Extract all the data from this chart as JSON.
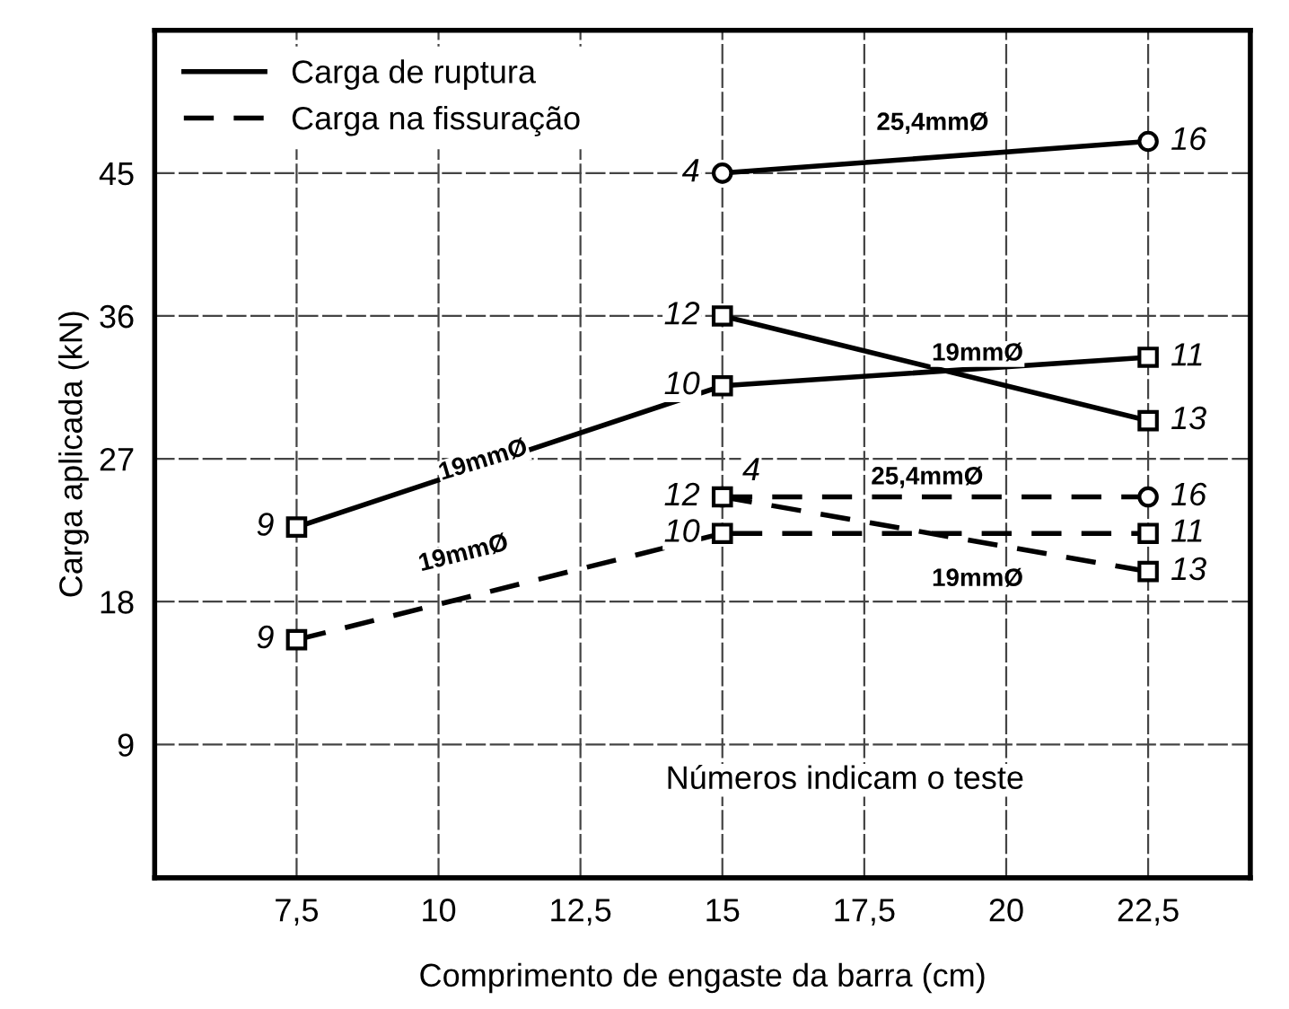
{
  "chart_data": {
    "type": "line",
    "xlabel": "Comprimento de engaste da barra (cm)",
    "ylabel": "Carga aplicada (kN)",
    "xlim": [
      5,
      24.3
    ],
    "ylim": [
      0.6,
      54
    ],
    "xticks": [
      {
        "value": 7.5,
        "label": "7,5"
      },
      10,
      {
        "value": 12.5,
        "label": "12,5"
      },
      15,
      {
        "value": 17.5,
        "label": "17,5"
      },
      20,
      {
        "value": 22.5,
        "label": "22,5"
      }
    ],
    "yticks": [
      9,
      18,
      27,
      36,
      45
    ],
    "grid": true,
    "legend": "top left",
    "series": [
      {
        "name": "Carga de ruptura",
        "color": "#000000",
        "line_style": "solid",
        "marker": "circle",
        "x": [
          15,
          22.5
        ],
        "values": [
          45,
          47
        ]
      },
      {
        "color": "#000000",
        "line_style": "solid",
        "marker": "square",
        "x": [
          15,
          22.5
        ],
        "values": [
          36,
          29.4
        ]
      },
      {
        "color": "#000000",
        "line_style": "solid",
        "marker": "square",
        "x": [
          7.5,
          15,
          22.5
        ],
        "values": [
          22.7,
          31.6,
          33.4
        ]
      },
      {
        "name": "Carga na fissuração",
        "color": "#000000",
        "line_style": "dashed",
        "marker": "circle",
        "x": [
          15,
          22.5
        ],
        "values": [
          24.6,
          24.6
        ]
      },
      {
        "color": "#000000",
        "line_style": "dashed",
        "marker": "square",
        "x": [
          15,
          22.5
        ],
        "values": [
          24.6,
          19.9
        ]
      },
      {
        "color": "#000000",
        "line_style": "dashed",
        "marker": "square",
        "x": [
          7.5,
          15,
          22.5
        ],
        "values": [
          15.6,
          22.3,
          22.3
        ]
      }
    ],
    "annotations": [
      {
        "text": "4",
        "x": 15,
        "y": 45
      },
      {
        "text": "16",
        "x": 22.5,
        "y": 47
      },
      {
        "text": "12",
        "x": 15,
        "y": 36
      },
      {
        "text": "13",
        "x": 22.5,
        "y": 29.4
      },
      {
        "text": "9",
        "x": 7.5,
        "y": 22.7
      },
      {
        "text": "10",
        "x": 15,
        "y": 31.6
      },
      {
        "text": "11",
        "x": 22.5,
        "y": 33.4
      },
      {
        "text": "12",
        "x": 15,
        "y": 24.6
      },
      {
        "text": "4",
        "x": 15,
        "y": 24.6
      },
      {
        "text": "16",
        "x": 22.5,
        "y": 24.6
      },
      {
        "text": "13",
        "x": 22.5,
        "y": 19.9
      },
      {
        "text": "9",
        "x": 7.5,
        "y": 15.6
      },
      {
        "text": "10",
        "x": 15,
        "y": 22.3
      },
      {
        "text": "11",
        "x": 22.5,
        "y": 22.3
      },
      "25,4mmØ",
      "19mmØ",
      "19mmØ",
      "25,4mmØ",
      "19mmØ",
      "19mmØ",
      "Números indicam o teste"
    ]
  }
}
